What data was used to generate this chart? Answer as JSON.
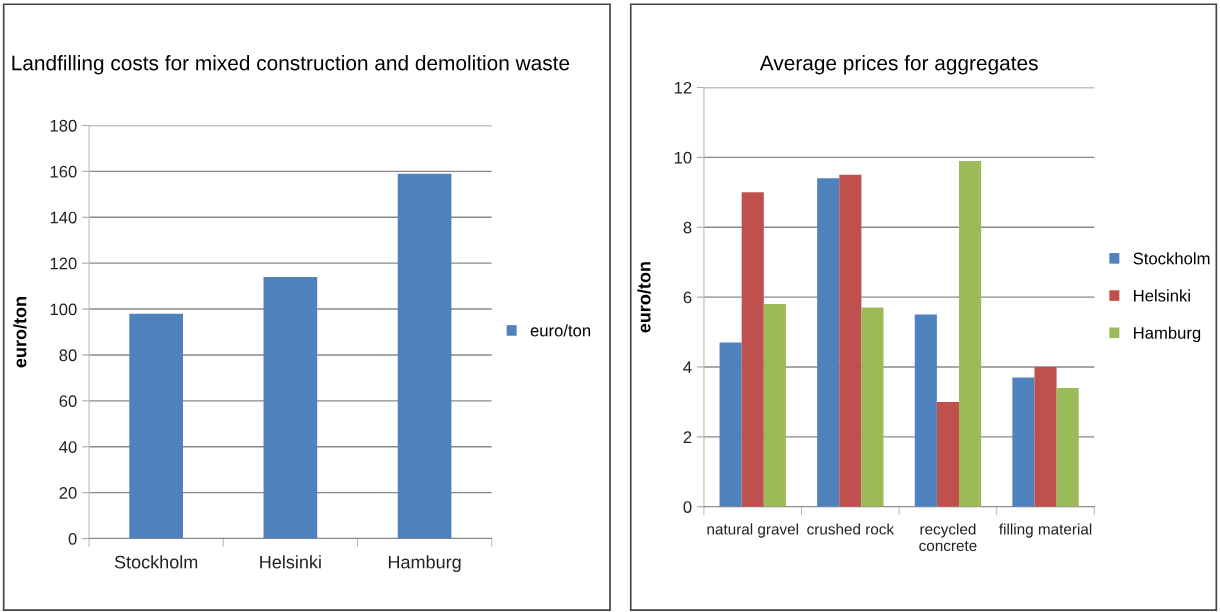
{
  "chart_data": [
    {
      "type": "bar",
      "title": "Landfilling costs for mixed construction and demolition waste",
      "ylabel": "euro/ton",
      "categories": [
        "Stockholm",
        "Helsinki",
        "Hamburg"
      ],
      "series": [
        {
          "name": "euro/ton",
          "color": "#4f81bd",
          "values": [
            98,
            114,
            159
          ]
        }
      ],
      "ylim": [
        0,
        180
      ],
      "yticks": [
        0,
        20,
        40,
        60,
        80,
        100,
        120,
        140,
        160,
        180
      ],
      "grid": "y",
      "legend": "right"
    },
    {
      "type": "bar",
      "title": "Average prices for aggregates",
      "ylabel": "euro/ton",
      "categories": [
        "natural gravel",
        "crushed rock",
        "recycled\nconcrete",
        "filling material"
      ],
      "series": [
        {
          "name": "Stockholm",
          "color": "#4f81bd",
          "values": [
            4.7,
            9.4,
            5.5,
            3.7
          ]
        },
        {
          "name": "Helsinki",
          "color": "#c0504d",
          "values": [
            9.0,
            9.5,
            3.0,
            4.0
          ]
        },
        {
          "name": "Hamburg",
          "color": "#9bbb59",
          "values": [
            5.8,
            5.7,
            9.9,
            3.4
          ]
        }
      ],
      "ylim": [
        0,
        12
      ],
      "yticks": [
        0,
        2,
        4,
        6,
        8,
        10,
        12
      ],
      "grid": "y",
      "legend": "right"
    }
  ]
}
